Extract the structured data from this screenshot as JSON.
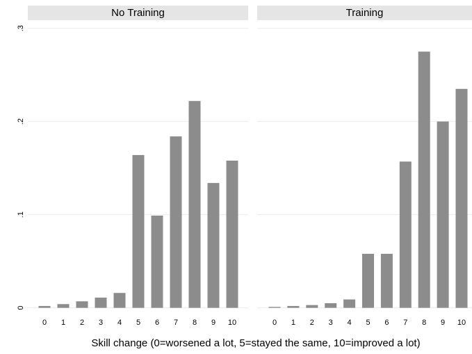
{
  "chart_data": [
    {
      "type": "bar",
      "title": "No Training",
      "categories": [
        "0",
        "1",
        "2",
        "3",
        "4",
        "5",
        "6",
        "7",
        "8",
        "9",
        "10"
      ],
      "values": [
        0.002,
        0.004,
        0.007,
        0.011,
        0.016,
        0.164,
        0.099,
        0.184,
        0.222,
        0.134,
        0.158
      ],
      "color": "#8c8c8c",
      "ylim": [
        -0.007,
        0.308
      ],
      "yticks": [
        0,
        {
          "value": 0.1,
          "label": ".1"
        },
        {
          "value": 0.2,
          "label": ".2"
        },
        {
          "value": 0.3,
          "label": ".3"
        }
      ],
      "grid": true,
      "xlabel": "Skill change (0=worsened a lot, 5=stayed the same, 10=improved a lot)"
    },
    {
      "type": "bar",
      "title": "Training",
      "categories": [
        "0",
        "1",
        "2",
        "3",
        "4",
        "5",
        "6",
        "7",
        "8",
        "9",
        "10"
      ],
      "values": [
        0.001,
        0.002,
        0.003,
        0.005,
        0.009,
        0.058,
        0.058,
        0.157,
        0.275,
        0.2,
        0.235
      ],
      "color": "#8c8c8c",
      "ylim": [
        -0.007,
        0.308
      ],
      "grid": true
    }
  ]
}
